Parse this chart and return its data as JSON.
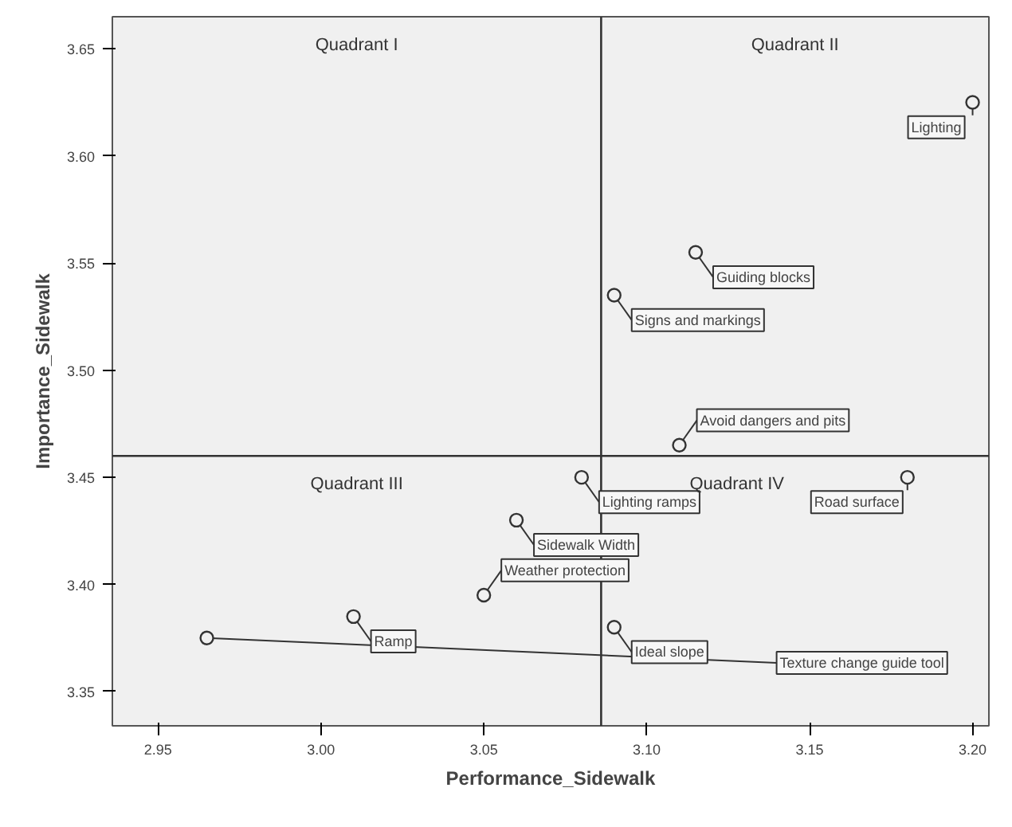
{
  "chart_data": {
    "type": "scatter",
    "xlabel": "Performance_Sidewalk",
    "ylabel": "Importance_Sidewalk",
    "x": [
      3.2,
      3.115,
      3.09,
      3.11,
      3.08,
      3.06,
      3.05,
      3.01,
      2.965,
      3.09,
      3.18
    ],
    "series": [
      {
        "color": "#333333",
        "values": [
          3.625,
          3.555,
          3.535,
          3.465,
          3.45,
          3.43,
          3.395,
          3.385,
          3.375,
          3.38,
          3.45
        ]
      }
    ],
    "marker": "circle",
    "grid": false,
    "xlim": [
      2.936,
      3.205
    ],
    "xticks": [
      {
        "value": 2.95,
        "label": "2.95"
      },
      {
        "value": 3.0,
        "label": "3.00"
      },
      {
        "value": 3.05,
        "label": "3.05"
      },
      {
        "value": 3.1,
        "label": "3.10"
      },
      {
        "value": 3.15,
        "label": "3.15"
      },
      {
        "value": 3.2,
        "label": "3.20"
      }
    ],
    "ylim": [
      3.334,
      3.665
    ],
    "yticks": [
      {
        "value": 3.35,
        "label": "3.35"
      },
      {
        "value": 3.4,
        "label": "3.40"
      },
      {
        "value": 3.45,
        "label": "3.45"
      },
      {
        "value": 3.5,
        "label": "3.50"
      },
      {
        "value": 3.55,
        "label": "3.55"
      },
      {
        "value": 3.6,
        "label": "3.60"
      },
      {
        "value": 3.65,
        "label": "3.65"
      }
    ],
    "ref_lines": [
      {
        "axis": "x",
        "value": 3.086,
        "color": "#333333"
      },
      {
        "axis": "y",
        "value": 3.46,
        "color": "#333333"
      }
    ],
    "annotations": [
      {
        "text": "Lighting",
        "x": 3.2,
        "y": 3.625
      },
      {
        "text": "Guiding blocks",
        "x": 3.115,
        "y": 3.555
      },
      {
        "text": "Signs and markings",
        "x": 3.09,
        "y": 3.535
      },
      {
        "text": "Avoid dangers and pits",
        "x": 3.11,
        "y": 3.465
      },
      {
        "text": "Lighting ramps",
        "x": 3.08,
        "y": 3.45
      },
      {
        "text": "Sidewalk Width",
        "x": 3.06,
        "y": 3.43
      },
      {
        "text": "Weather protection",
        "x": 3.05,
        "y": 3.395
      },
      {
        "text": "Ramp",
        "x": 3.01,
        "y": 3.385
      },
      {
        "text": "Texture change guide tool",
        "x": 2.965,
        "y": 3.375
      },
      {
        "text": "Ideal slope",
        "x": 3.09,
        "y": 3.38
      },
      {
        "text": "Road surface",
        "x": 3.18,
        "y": 3.45
      },
      "Quadrant I",
      "Quadrant II",
      "Quadrant III",
      "Quadrant IV"
    ]
  }
}
